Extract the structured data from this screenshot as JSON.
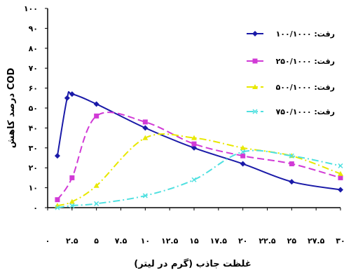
{
  "chart_data": {
    "type": "line",
    "title": "",
    "xlabel": "غلظت جاذب (گرم در لیتر)",
    "ylabel": "درصد کاهش COD",
    "xlim": [
      0,
      30
    ],
    "ylim": [
      0,
      100
    ],
    "x_ticks": [
      0,
      2.5,
      5,
      7.5,
      10,
      12.5,
      15,
      17.5,
      20,
      22.5,
      25,
      27.5,
      30
    ],
    "x_tick_labels": [
      "۰",
      "۲.۵",
      "۵",
      "۷.۵",
      "۱۰",
      "۱۲.۵",
      "۱۵",
      "۱۷.۵",
      "۲۰",
      "۲۲.۵",
      "۲۵",
      "۲۷.۵",
      "۳۰"
    ],
    "y_ticks": [
      0,
      10,
      20,
      30,
      40,
      50,
      60,
      70,
      80,
      90,
      100
    ],
    "y_tick_labels": [
      "۰",
      "۱۰",
      "۲۰",
      "۳۰",
      "۴۰",
      "۵۰",
      "۶۰",
      "۷۰",
      "۸۰",
      "۹۰",
      "۱۰۰"
    ],
    "grid": false,
    "legend_position": "right",
    "series": [
      {
        "name": "رقت: ۱۰۰/۱۰۰۰",
        "color": "#1a1aa8",
        "dash": "solid",
        "marker": "diamond",
        "x": [
          1,
          2,
          2.5,
          5,
          10,
          15,
          20,
          25,
          30
        ],
        "y": [
          26,
          55,
          57,
          52,
          40,
          30,
          22,
          13,
          9
        ]
      },
      {
        "name": "رقت: ۲۵۰/۱۰۰۰",
        "color": "#d13ad6",
        "dash": "long-dash",
        "marker": "square",
        "x": [
          1,
          2.5,
          5,
          10,
          15,
          20,
          25,
          30
        ],
        "y": [
          4,
          15,
          46,
          43,
          32,
          26,
          22,
          15
        ]
      },
      {
        "name": "رقت: ۵۰۰/۱۰۰۰",
        "color": "#e8e800",
        "dash": "dash-dot",
        "marker": "triangle",
        "x": [
          1,
          2.5,
          5,
          10,
          15,
          20,
          25,
          30
        ],
        "y": [
          1,
          3,
          11,
          35,
          35,
          30,
          26,
          17
        ]
      },
      {
        "name": "رقت: ۷۵۰/۱۰۰۰",
        "color": "#4fe0e0",
        "dash": "dash-dot",
        "marker": "x",
        "x": [
          1,
          2.5,
          5,
          10,
          15,
          20,
          25,
          30
        ],
        "y": [
          0,
          1,
          2,
          6,
          14,
          28,
          26,
          21
        ]
      }
    ]
  }
}
